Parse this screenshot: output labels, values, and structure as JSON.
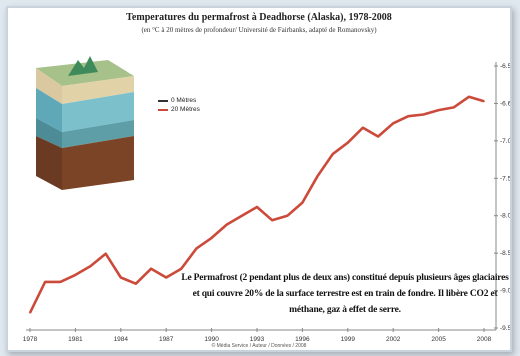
{
  "chart_data": {
    "type": "line",
    "title": "Temperatures du permafrost à Deadhorse (Alaska), 1978-2008",
    "subtitle": "(en °C à 20 mètres de profondeur/ Université de Fairbanks, adapté de Romanovsky)",
    "xlabel": "",
    "ylabel": "",
    "x": [
      1978,
      1979,
      1980,
      1981,
      1982,
      1983,
      1984,
      1985,
      1986,
      1987,
      1988,
      1989,
      1990,
      1991,
      1992,
      1993,
      1994,
      1995,
      1996,
      1997,
      1998,
      1999,
      2000,
      2001,
      2002,
      2003,
      2004,
      2005,
      2006,
      2007,
      2008
    ],
    "series": [
      {
        "name": "",
        "color": "#cc4a3a",
        "values": [
          -9.35,
          -9.0,
          -9.0,
          -8.92,
          -8.82,
          -8.68,
          -8.95,
          -9.02,
          -8.85,
          -8.95,
          -8.85,
          -8.62,
          -8.5,
          -8.35,
          -8.25,
          -8.15,
          -8.3,
          -8.25,
          -8.1,
          -7.8,
          -7.55,
          -7.42,
          -7.25,
          -7.35,
          -7.2,
          -7.12,
          -7.1,
          -7.05,
          -7.02,
          -6.9,
          -6.95
        ]
      }
    ],
    "ylim": [
      -9.5,
      -6.55
    ],
    "y_ticks": [
      "-6.5",
      "-6.6",
      "-7.0",
      "-7.5",
      "-8.0",
      "-8.5",
      "-9.0",
      "-9.5"
    ],
    "x_ticks": [
      "1978",
      "1981",
      "1984",
      "1987",
      "1990",
      "1993",
      "1996",
      "1999",
      "2002",
      "2005",
      "2008"
    ],
    "legend": [
      "0 Mètres",
      "20 Mètres"
    ],
    "legend_placement": "top-left",
    "grid": false,
    "annotation": "Le Permafrost (2 pendant plus de deux ans) constitué depuis plusieurs âges glaciaires et qui couvre 20% de la surface terrestre est en train de fondre. Il libère CO2 et méthane, gaz à effet de serre.",
    "footer": "© Média Service / Auteur / Données / 2008"
  }
}
